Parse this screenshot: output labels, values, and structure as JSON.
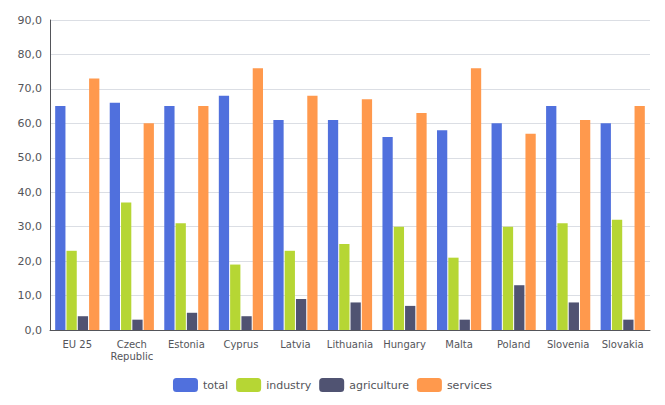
{
  "chart_data": {
    "type": "bar",
    "categories": [
      "EU 25",
      "Czech\nRepublic",
      "Estonia",
      "Cyprus",
      "Latvia",
      "Lithuania",
      "Hungary",
      "Malta",
      "Poland",
      "Slovenia",
      "Slovakia"
    ],
    "series": [
      {
        "name": "total",
        "values": [
          65,
          66,
          65,
          68,
          61,
          61,
          56,
          58,
          60,
          65,
          60
        ]
      },
      {
        "name": "industry",
        "values": [
          23,
          37,
          31,
          19,
          23,
          25,
          30,
          21,
          30,
          31,
          32
        ]
      },
      {
        "name": "agriculture",
        "values": [
          4,
          3,
          5,
          4,
          9,
          8,
          7,
          3,
          13,
          8,
          3
        ]
      },
      {
        "name": "services",
        "values": [
          73,
          60,
          65,
          76,
          68,
          67,
          63,
          76,
          57,
          61,
          65
        ]
      }
    ],
    "ylim": [
      0,
      90
    ],
    "yticks": [
      {
        "value": 0,
        "label": "0,0"
      },
      {
        "value": 10,
        "label": "10,0"
      },
      {
        "value": 20,
        "label": "20,0"
      },
      {
        "value": 30,
        "label": "30,0"
      },
      {
        "value": 40,
        "label": "40,0"
      },
      {
        "value": 50,
        "label": "50,0"
      },
      {
        "value": 60,
        "label": "60,0"
      },
      {
        "value": 70,
        "label": "70,0"
      },
      {
        "value": 80,
        "label": "80,0"
      },
      {
        "value": 90,
        "label": "90,0"
      }
    ],
    "grid": true,
    "legend": "bottom"
  }
}
